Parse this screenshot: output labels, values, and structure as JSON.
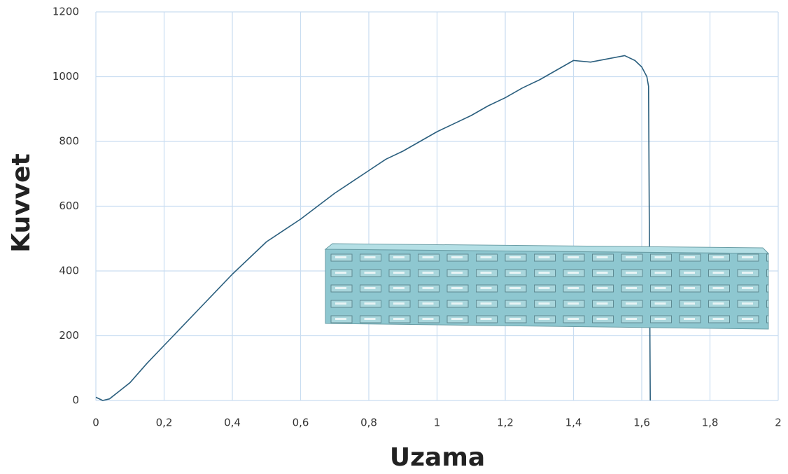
{
  "chart_data": {
    "type": "line",
    "xlabel": "Uzama",
    "ylabel": "Kuvvet",
    "x": [
      0,
      0.02,
      0.04,
      0.07,
      0.1,
      0.15,
      0.2,
      0.25,
      0.3,
      0.35,
      0.4,
      0.45,
      0.5,
      0.55,
      0.6,
      0.65,
      0.7,
      0.75,
      0.8,
      0.85,
      0.9,
      0.95,
      1.0,
      1.05,
      1.1,
      1.15,
      1.2,
      1.25,
      1.3,
      1.35,
      1.4,
      1.45,
      1.5,
      1.55,
      1.58,
      1.6,
      1.615,
      1.62,
      1.625
    ],
    "series": [
      {
        "color": "#2b5f7e",
        "values": [
          10,
          0,
          5,
          30,
          55,
          115,
          170,
          225,
          280,
          335,
          390,
          440,
          490,
          525,
          560,
          600,
          640,
          675,
          710,
          745,
          770,
          800,
          830,
          855,
          880,
          910,
          935,
          965,
          990,
          1020,
          1050,
          1045,
          1055,
          1065,
          1050,
          1030,
          1000,
          970,
          0
        ]
      }
    ],
    "xlim": [
      0,
      2
    ],
    "ylim": [
      0,
      1200
    ],
    "xticks": [
      0,
      {
        "value": 0.2,
        "label": "0,2"
      },
      {
        "value": 0.4,
        "label": "0,4"
      },
      {
        "value": 0.6,
        "label": "0,6"
      },
      {
        "value": 0.8,
        "label": "0,8"
      },
      1,
      {
        "value": 1.2,
        "label": "1,2"
      },
      {
        "value": 1.4,
        "label": "1,4"
      },
      {
        "value": 1.6,
        "label": "1,6"
      },
      {
        "value": 1.8,
        "label": "1,8"
      },
      2
    ],
    "yticks": [
      0,
      200,
      400,
      600,
      800,
      1000,
      1200
    ],
    "grid": true
  }
}
